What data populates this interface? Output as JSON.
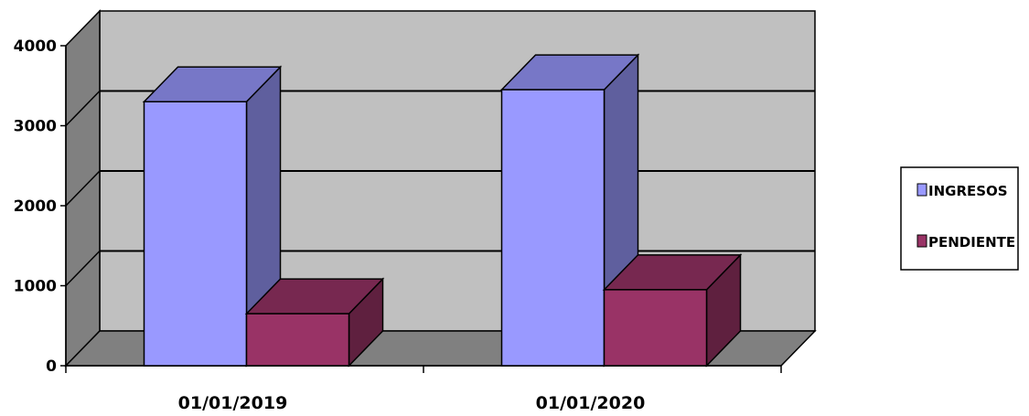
{
  "chart_data": {
    "type": "bar",
    "categories": [
      "01/01/2019",
      "01/01/2020"
    ],
    "series": [
      {
        "name": "INGRESOS",
        "values": [
          3300,
          3450
        ],
        "color": "#9999ff"
      },
      {
        "name": "PENDIENTE",
        "values": [
          650,
          950
        ],
        "color": "#993366"
      }
    ],
    "y_ticks": [
      "0",
      "1000",
      "2000",
      "3000",
      "4000"
    ],
    "ylim": [
      0,
      4000
    ],
    "grid": true,
    "style": "3d-clustered-column",
    "legend_position": "right",
    "colors": {
      "wall": "#c0c0c0",
      "side_wall": "#808080",
      "floor": "#808080",
      "gridline": "#000000"
    }
  }
}
